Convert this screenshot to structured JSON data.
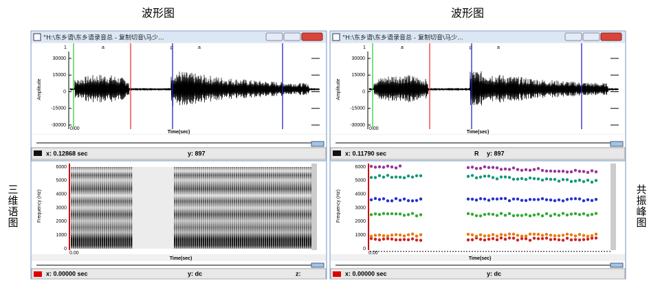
{
  "captions": [
    "波形图",
    "波形图"
  ],
  "side_labels": [
    "三维语图",
    "共振峰图"
  ],
  "panels": [
    {
      "title": "\"H:\\东乡语\\东乡语录音总 - 复制切音\\马少...",
      "segment_labels": [
        "1",
        "a",
        "p",
        "a"
      ],
      "amplitude_ticks": [
        30000,
        15000,
        0,
        -15000,
        -30000
      ],
      "amplitude_label": "Amplitude",
      "time_label": "Time(sec)",
      "time_start": "0.00",
      "status_x": "x: 0.12868 sec",
      "status_y": "y: 897",
      "frequency_ticks": [
        6000,
        5000,
        4000,
        3000,
        2000,
        1000,
        0
      ],
      "frequency_label": "Frequency (Hz)",
      "lower_time_label": "Time(sec)",
      "lower_time_start": "0.00",
      "lower_status_x": "x: 0.00000 sec",
      "lower_status_y": "y: dc",
      "lower_status_z": "z:"
    },
    {
      "title": "\"H:\\东乡语\\东乡语录音总 - 复制切音\\马少...",
      "segment_labels": [
        "1",
        "a",
        "p",
        "a"
      ],
      "amplitude_ticks": [
        30000,
        15000,
        0,
        -15000,
        -30000
      ],
      "amplitude_label": "Amplitude",
      "time_label": "Time(sec)",
      "time_start": "0.00",
      "status_x": "x: 0.11790 sec",
      "status_r": "R",
      "status_y": "y: 897",
      "frequency_ticks": [
        6000,
        5000,
        4000,
        3000,
        2000,
        1000,
        0
      ],
      "frequency_label": "Frequency (Hz)",
      "lower_time_label": "Time(sec)",
      "lower_time_start": "0.00",
      "lower_status_x": "x: 0.00000 sec",
      "lower_status_y": "y: dc"
    }
  ]
}
